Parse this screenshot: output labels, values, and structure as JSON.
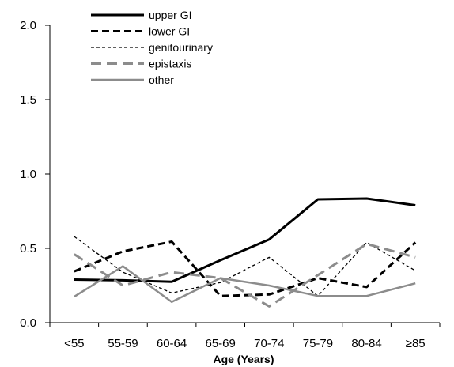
{
  "chart_data": {
    "type": "line",
    "title": "",
    "xlabel": "Age (Years)",
    "ylabel": "",
    "categories": [
      "<55",
      "55-59",
      "60-64",
      "65-69",
      "70-74",
      "75-79",
      "80-84",
      "≥85"
    ],
    "ylim": [
      0,
      2.0
    ],
    "yticks": [
      "0.0",
      "0.5",
      "1.0",
      "1.5",
      "2.0"
    ],
    "grid": false,
    "legend_position": "top-left",
    "series": [
      {
        "name": "upper GI",
        "values": [
          0.29,
          0.285,
          0.275,
          0.42,
          0.56,
          0.83,
          0.835,
          0.79
        ],
        "color": "#000000",
        "style": "solid"
      },
      {
        "name": "lower GI",
        "values": [
          0.345,
          0.48,
          0.545,
          0.18,
          0.19,
          0.3,
          0.24,
          0.54
        ],
        "color": "#000000",
        "style": "dashed"
      },
      {
        "name": "genitourinary",
        "values": [
          0.58,
          0.34,
          0.2,
          0.27,
          0.44,
          0.18,
          0.54,
          0.35
        ],
        "color": "#000000",
        "style": "dotted"
      },
      {
        "name": "epistaxis",
        "values": [
          0.46,
          0.25,
          0.34,
          0.3,
          0.11,
          0.32,
          0.53,
          0.44
        ],
        "color": "#8c8c8c",
        "style": "dashed"
      },
      {
        "name": "other",
        "values": [
          0.175,
          0.38,
          0.14,
          0.3,
          0.25,
          0.18,
          0.18,
          0.265
        ],
        "color": "#8c8c8c",
        "style": "solid"
      }
    ]
  }
}
